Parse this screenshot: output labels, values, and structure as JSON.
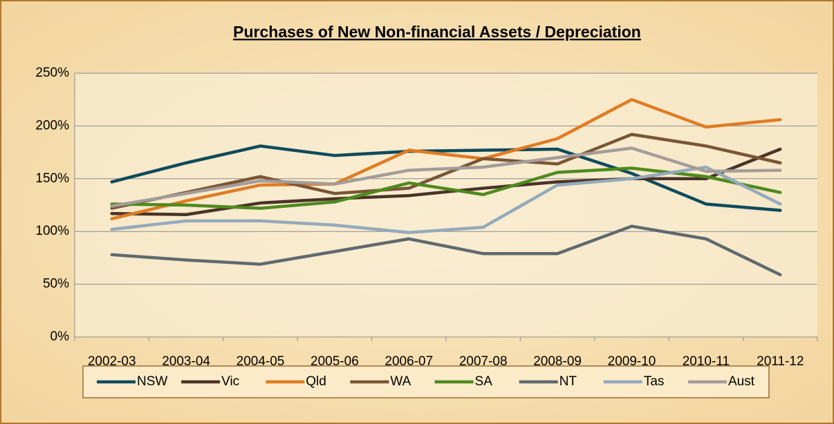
{
  "chart_data": {
    "type": "line",
    "title": "Purchases of New Non-financial Assets / Depreciation",
    "categories": [
      "2002-03",
      "2003-04",
      "2004-05",
      "2005-06",
      "2006-07",
      "2007-08",
      "2008-09",
      "2009-10",
      "2010-11",
      "2011-12"
    ],
    "series": [
      {
        "name": "NSW",
        "color": "#0e4b5c",
        "values": [
          147,
          165,
          181,
          172,
          176,
          177,
          178,
          155,
          126,
          120
        ]
      },
      {
        "name": "Vic",
        "color": "#4a3326",
        "values": [
          117,
          116,
          127,
          131,
          134,
          141,
          147,
          150,
          150,
          178
        ]
      },
      {
        "name": "Qld",
        "color": "#e07b22",
        "values": [
          112,
          129,
          144,
          145,
          177,
          169,
          188,
          225,
          199,
          206
        ]
      },
      {
        "name": "WA",
        "color": "#7a5535",
        "values": [
          122,
          137,
          152,
          136,
          141,
          169,
          164,
          192,
          181,
          165
        ]
      },
      {
        "name": "SA",
        "color": "#4e8a1e",
        "values": [
          126,
          125,
          122,
          128,
          146,
          135,
          156,
          160,
          152,
          137
        ]
      },
      {
        "name": "NT",
        "color": "#5e6a6e",
        "values": [
          78,
          73,
          69,
          81,
          93,
          79,
          79,
          105,
          93,
          59
        ]
      },
      {
        "name": "Tas",
        "color": "#93aabb",
        "values": [
          102,
          110,
          110,
          106,
          99,
          104,
          144,
          150,
          161,
          126
        ]
      },
      {
        "name": "Aust",
        "color": "#a39c99",
        "values": [
          124,
          136,
          148,
          145,
          158,
          161,
          170,
          179,
          157,
          158
        ]
      }
    ],
    "ylim": [
      0,
      250
    ],
    "yticks": [
      {
        "value": 0,
        "label": "0%"
      },
      {
        "value": 50,
        "label": "50%"
      },
      {
        "value": 100,
        "label": "100%"
      },
      {
        "value": 150,
        "label": "150%"
      },
      {
        "value": 200,
        "label": "200%"
      },
      {
        "value": 250,
        "label": "250%"
      }
    ],
    "grid": true,
    "legend": "bottom"
  }
}
